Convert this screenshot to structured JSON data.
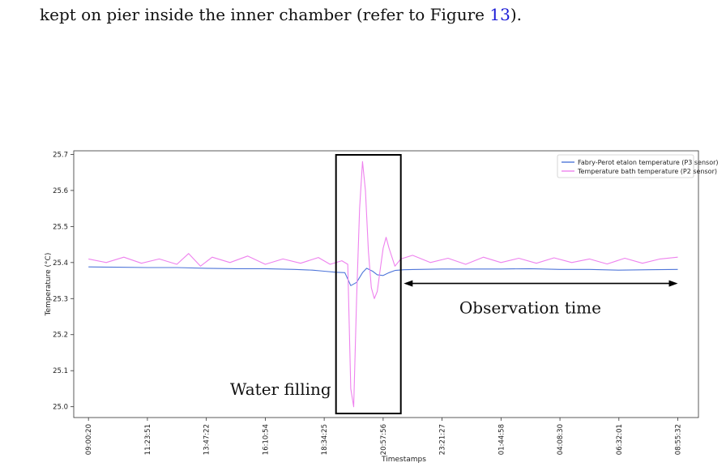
{
  "body_text": {
    "line_prefix": "kept on pier inside the inner chamber (refer to Figure ",
    "figure_ref": "13",
    "line_suffix": ")."
  },
  "chart_data": {
    "type": "line",
    "xlabel": "Timestamps",
    "ylabel": "Temperature (°C)",
    "x_ticks": [
      "09:00:20",
      "11:23:51",
      "13:47:22",
      "16:10:54",
      "18:34:25",
      "20:57:56",
      "23:21:27",
      "01:44:58",
      "04:08:30",
      "06:32:01",
      "08:55:32"
    ],
    "y_ticks": [
      "25.0",
      "25.1",
      "25.2",
      "25.3",
      "25.4",
      "25.5",
      "25.6",
      "25.7"
    ],
    "ylim": [
      24.97,
      25.71
    ],
    "xlim": [
      -0.25,
      10.35
    ],
    "legend_position": "top-right",
    "series": [
      {
        "name": "Fabry-Perot etalon temperature (P3 sensor)",
        "color": "#4f76d9",
        "points": [
          [
            0,
            25.388
          ],
          [
            0.5,
            25.387
          ],
          [
            1,
            25.386
          ],
          [
            1.5,
            25.386
          ],
          [
            2,
            25.384
          ],
          [
            2.5,
            25.383
          ],
          [
            3,
            25.383
          ],
          [
            3.5,
            25.381
          ],
          [
            3.8,
            25.379
          ],
          [
            4,
            25.376
          ],
          [
            4.2,
            25.373
          ],
          [
            4.35,
            25.372
          ],
          [
            4.45,
            25.336
          ],
          [
            4.55,
            25.345
          ],
          [
            4.65,
            25.372
          ],
          [
            4.72,
            25.384
          ],
          [
            4.82,
            25.376
          ],
          [
            4.9,
            25.366
          ],
          [
            5,
            25.364
          ],
          [
            5.1,
            25.372
          ],
          [
            5.2,
            25.378
          ],
          [
            5.35,
            25.38
          ],
          [
            5.6,
            25.381
          ],
          [
            6,
            25.382
          ],
          [
            6.5,
            25.382
          ],
          [
            7,
            25.382
          ],
          [
            7.5,
            25.383
          ],
          [
            8,
            25.381
          ],
          [
            8.5,
            25.381
          ],
          [
            9,
            25.379
          ],
          [
            9.5,
            25.38
          ],
          [
            10,
            25.381
          ]
        ]
      },
      {
        "name": "Temperature bath temperature (P2 sensor)",
        "color": "#ee82ee",
        "points": [
          [
            0,
            25.41
          ],
          [
            0.3,
            25.4
          ],
          [
            0.6,
            25.415
          ],
          [
            0.9,
            25.398
          ],
          [
            1.2,
            25.41
          ],
          [
            1.5,
            25.395
          ],
          [
            1.7,
            25.425
          ],
          [
            1.9,
            25.39
          ],
          [
            2.1,
            25.415
          ],
          [
            2.4,
            25.4
          ],
          [
            2.7,
            25.418
          ],
          [
            3,
            25.395
          ],
          [
            3.3,
            25.41
          ],
          [
            3.6,
            25.398
          ],
          [
            3.9,
            25.414
          ],
          [
            4.1,
            25.395
          ],
          [
            4.3,
            25.405
          ],
          [
            4.4,
            25.395
          ],
          [
            4.45,
            25.05
          ],
          [
            4.5,
            25.0
          ],
          [
            4.55,
            25.3
          ],
          [
            4.6,
            25.55
          ],
          [
            4.65,
            25.68
          ],
          [
            4.7,
            25.6
          ],
          [
            4.75,
            25.43
          ],
          [
            4.8,
            25.33
          ],
          [
            4.85,
            25.3
          ],
          [
            4.9,
            25.32
          ],
          [
            4.95,
            25.38
          ],
          [
            5,
            25.44
          ],
          [
            5.05,
            25.47
          ],
          [
            5.1,
            25.44
          ],
          [
            5.2,
            25.39
          ],
          [
            5.3,
            25.41
          ],
          [
            5.5,
            25.42
          ],
          [
            5.8,
            25.4
          ],
          [
            6.1,
            25.412
          ],
          [
            6.4,
            25.395
          ],
          [
            6.7,
            25.415
          ],
          [
            7,
            25.4
          ],
          [
            7.3,
            25.412
          ],
          [
            7.6,
            25.398
          ],
          [
            7.9,
            25.413
          ],
          [
            8.2,
            25.4
          ],
          [
            8.5,
            25.41
          ],
          [
            8.8,
            25.396
          ],
          [
            9.1,
            25.412
          ],
          [
            9.4,
            25.398
          ],
          [
            9.7,
            25.41
          ],
          [
            10,
            25.415
          ]
        ]
      }
    ],
    "annotations": {
      "water_filling": "Water filling",
      "observation_time": "Observation time",
      "box_x_range": [
        4.2,
        5.3
      ],
      "arrow_x_range": [
        5.35,
        10.0
      ],
      "arrow_y": 25.342
    }
  }
}
